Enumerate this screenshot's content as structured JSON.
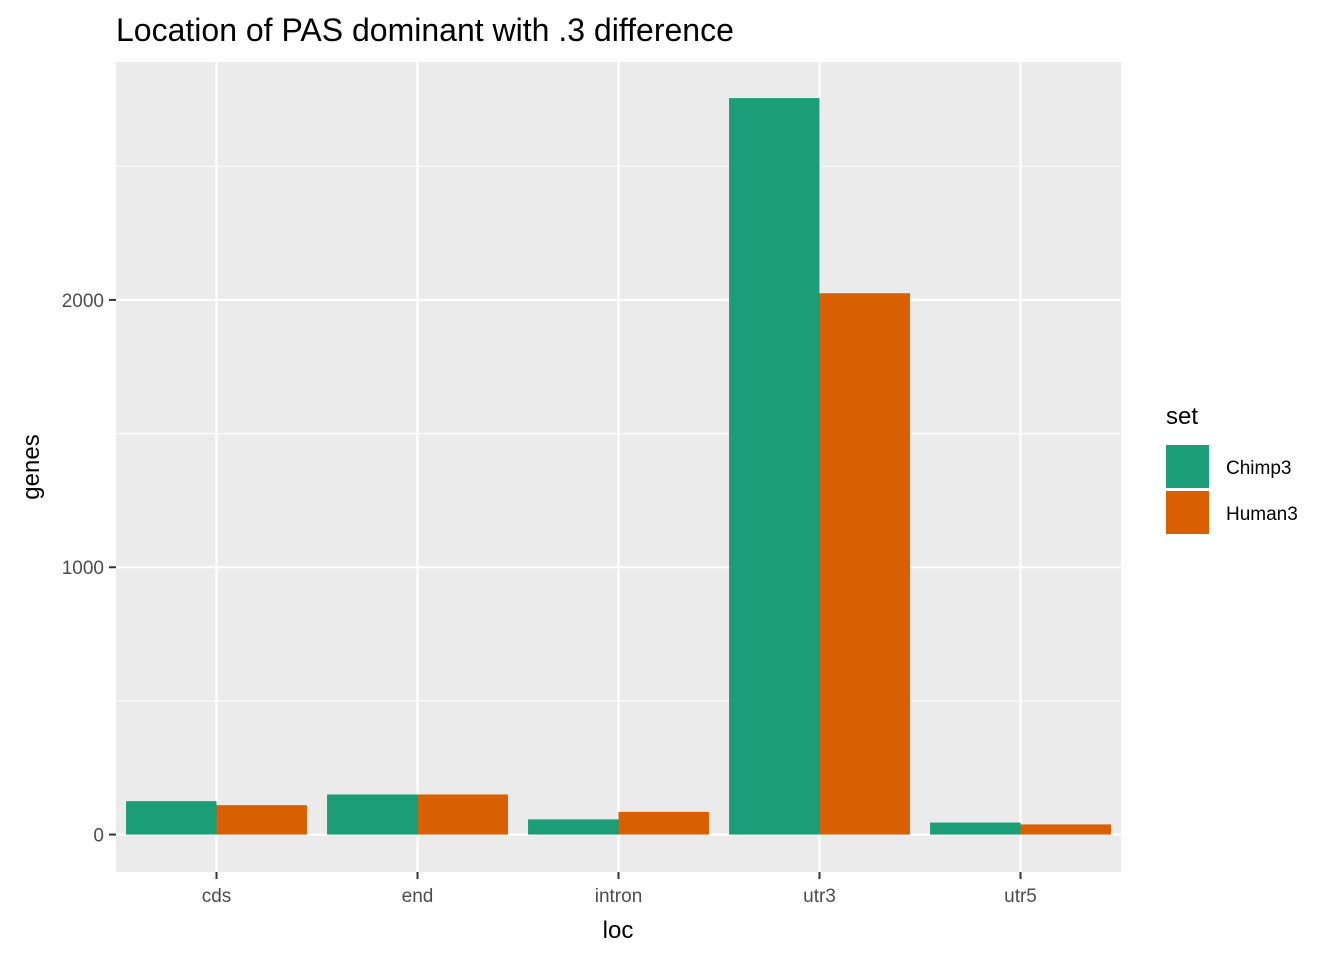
{
  "chart_data": {
    "type": "bar",
    "title": "Location of PAS dominant with .3 difference",
    "xlabel": "loc",
    "ylabel": "genes",
    "categories": [
      "cds",
      "end",
      "intron",
      "utr3",
      "utr5"
    ],
    "series": [
      {
        "name": "Chimp3",
        "color": "#1b9e77",
        "values": [
          125,
          150,
          57,
          2755,
          45
        ]
      },
      {
        "name": "Human3",
        "color": "#d95f02",
        "values": [
          110,
          150,
          85,
          2025,
          38
        ]
      }
    ],
    "ylim": [
      -140,
      2890
    ],
    "y_ticks": [
      0,
      1000,
      2000
    ],
    "y_tick_labels": [
      "0",
      "1000",
      "2000"
    ],
    "y_minor_ticks": [
      500,
      1500,
      2500
    ],
    "legend": {
      "title": "set",
      "placement": "right"
    },
    "grid": true,
    "panel_background": "#ebebeb",
    "grid_color": "#ffffff"
  }
}
